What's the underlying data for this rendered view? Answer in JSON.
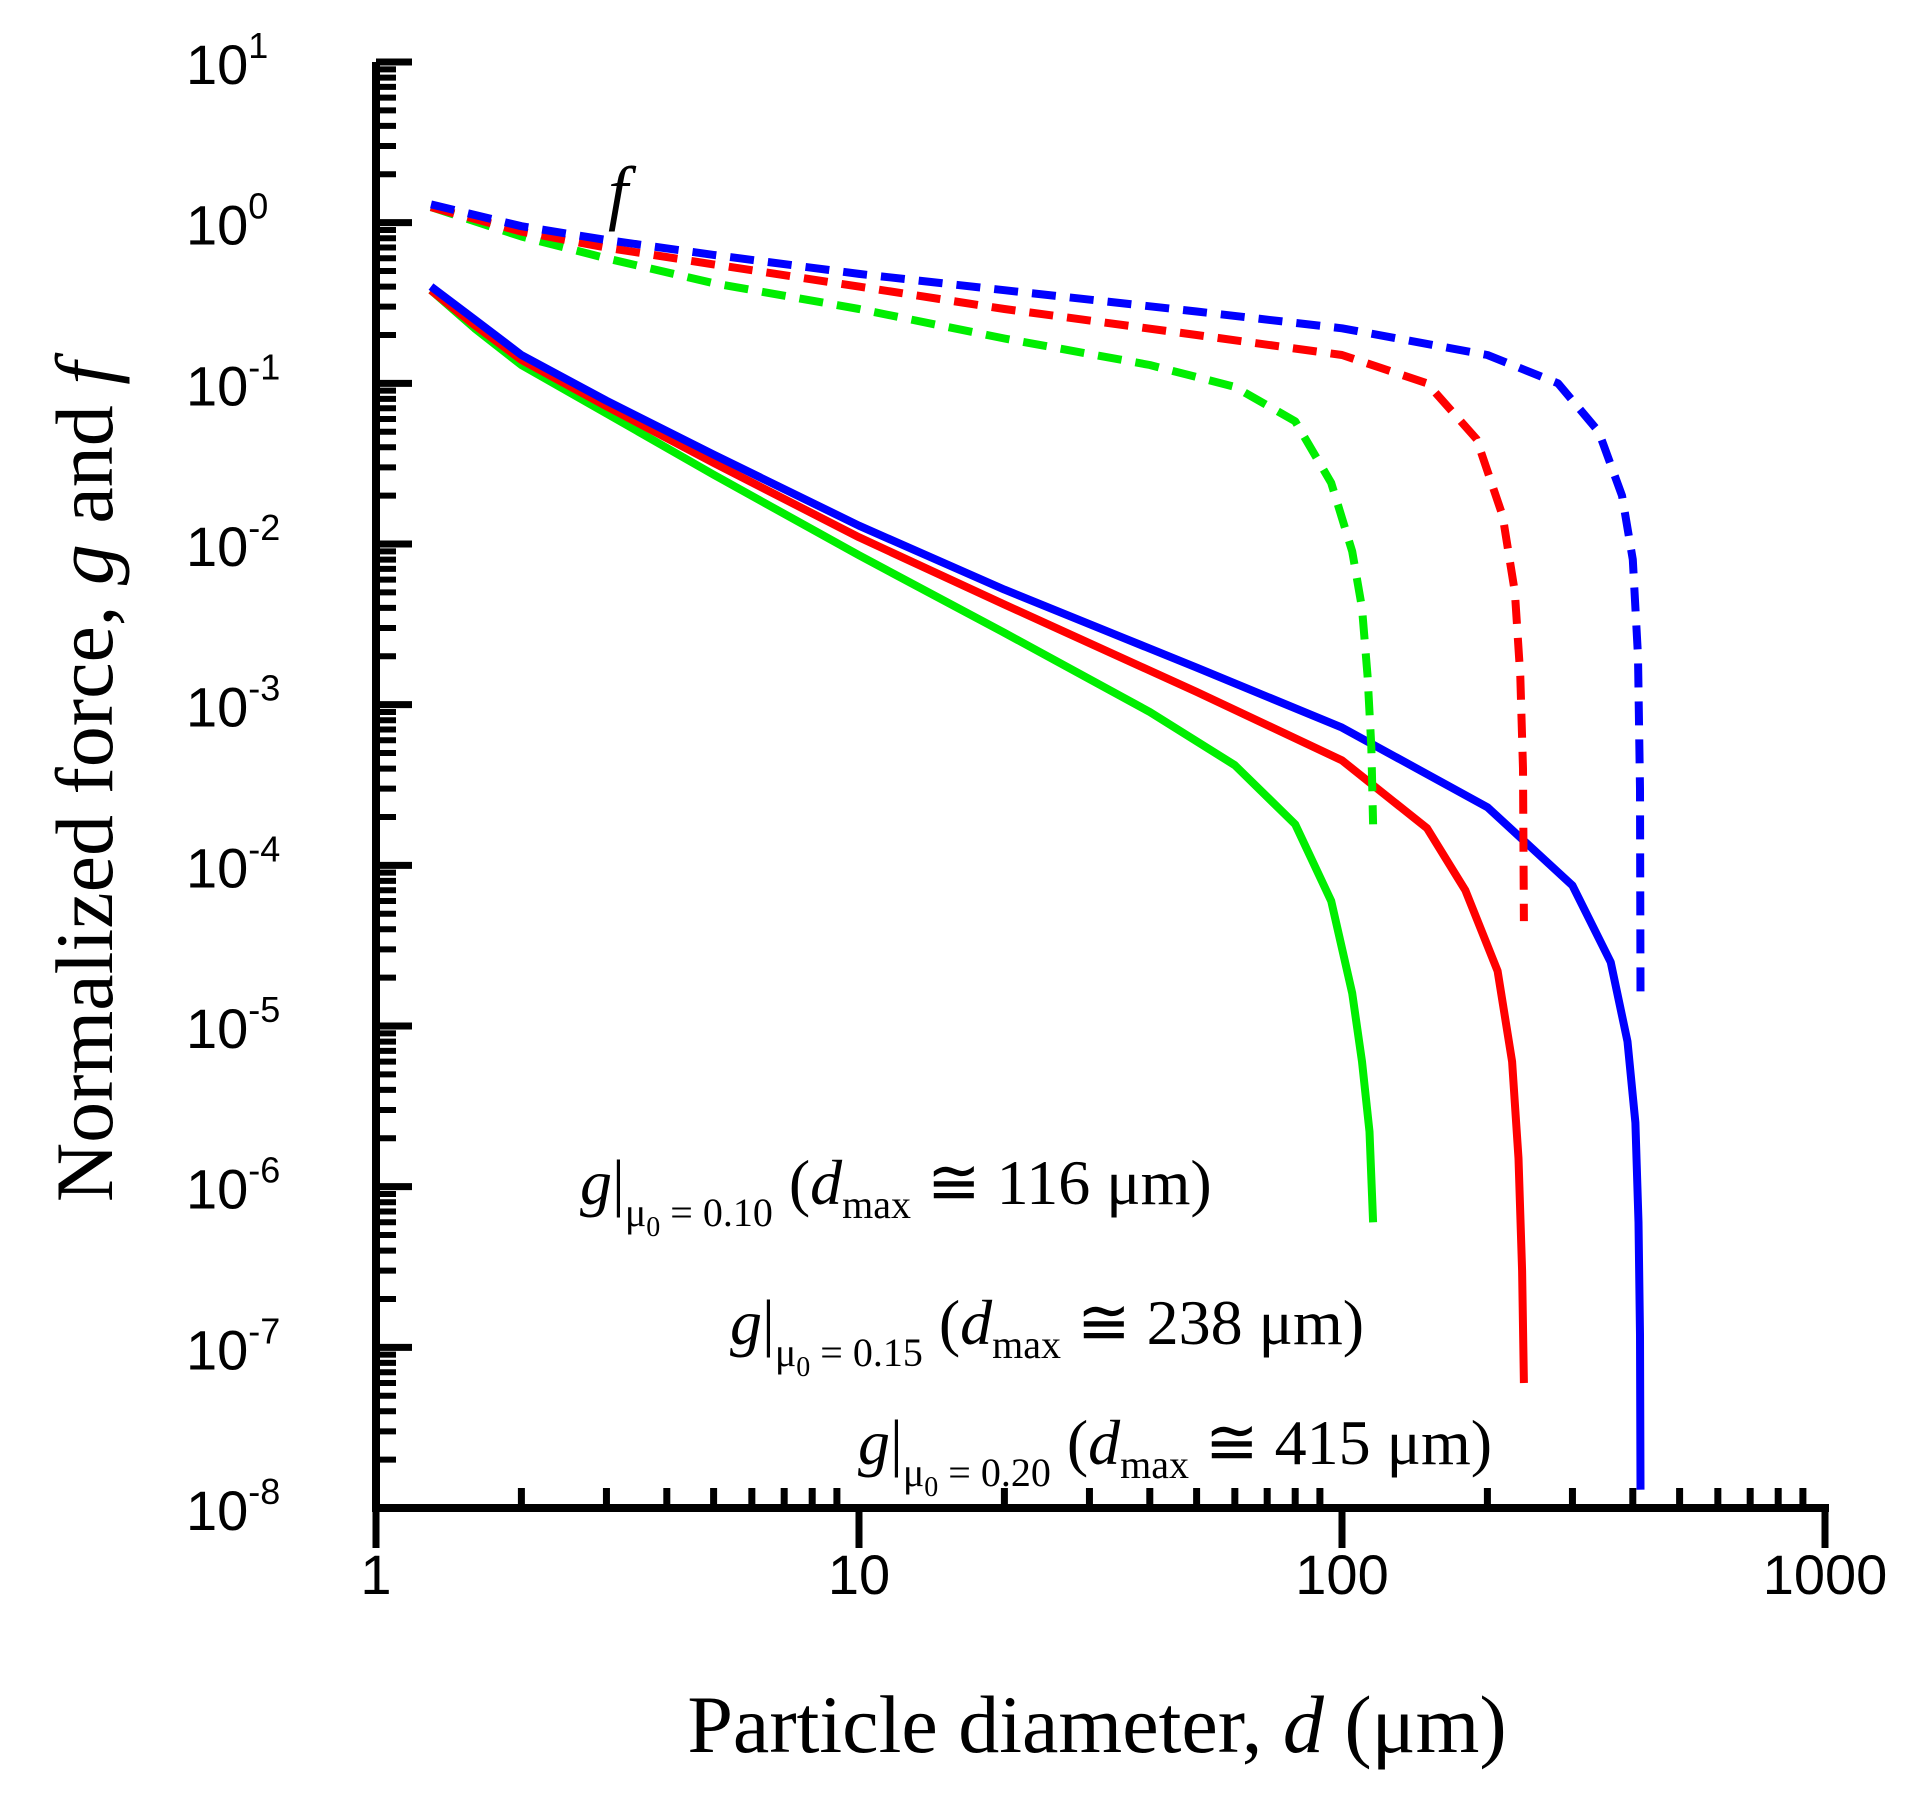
{
  "chart_data": {
    "type": "line",
    "title": "",
    "xscale": "log",
    "yscale": "log",
    "xlim": [
      1,
      1000
    ],
    "ylim": [
      1e-08,
      10
    ],
    "xlabel": {
      "text": "Particle diameter, ",
      "var": "d",
      "unit": " (μm)"
    },
    "ylabel": {
      "text": "Normalized force, ",
      "var1": "g",
      "mid": " and ",
      "var2": "f"
    },
    "x_ticks": [
      {
        "value": 1,
        "label": "1"
      },
      {
        "value": 10,
        "label": "10"
      },
      {
        "value": 100,
        "label": "100"
      },
      {
        "value": 1000,
        "label": "1000"
      }
    ],
    "y_ticks": [
      {
        "value": 10,
        "base": "10",
        "exp": "1"
      },
      {
        "value": 1,
        "base": "10",
        "exp": "0"
      },
      {
        "value": 0.1,
        "base": "10",
        "exp": "-1"
      },
      {
        "value": 0.01,
        "base": "10",
        "exp": "-2"
      },
      {
        "value": 0.001,
        "base": "10",
        "exp": "-3"
      },
      {
        "value": 0.0001,
        "base": "10",
        "exp": "-4"
      },
      {
        "value": 1e-05,
        "base": "10",
        "exp": "-5"
      },
      {
        "value": 1e-06,
        "base": "10",
        "exp": "-6"
      },
      {
        "value": 1e-07,
        "base": "10",
        "exp": "-7"
      },
      {
        "value": 1e-08,
        "base": "10",
        "exp": "-8"
      }
    ],
    "f_label": "f",
    "series": [
      {
        "name": "g (mu0 = 0.10)",
        "kind": "g",
        "style": "solid",
        "color": "#00ee00",
        "mu0": "0.10",
        "dmax": "116",
        "points": [
          [
            1.3,
            0.38
          ],
          [
            1.6,
            0.22
          ],
          [
            2,
            0.13
          ],
          [
            3,
            0.065
          ],
          [
            5,
            0.027
          ],
          [
            10,
            0.0085
          ],
          [
            20,
            0.0028
          ],
          [
            40,
            0.0009
          ],
          [
            60,
            0.00042
          ],
          [
            80,
            0.00018
          ],
          [
            95,
            6e-05
          ],
          [
            105,
            1.6e-05
          ],
          [
            110,
            6e-06
          ],
          [
            114,
            2.2e-06
          ],
          [
            116,
            6e-07
          ]
        ]
      },
      {
        "name": "g (mu0 = 0.15)",
        "kind": "g",
        "style": "solid",
        "color": "#ff0000",
        "mu0": "0.15",
        "dmax": "238",
        "points": [
          [
            1.3,
            0.38
          ],
          [
            1.6,
            0.23
          ],
          [
            2,
            0.14
          ],
          [
            3,
            0.072
          ],
          [
            5,
            0.032
          ],
          [
            10,
            0.011
          ],
          [
            20,
            0.0042
          ],
          [
            50,
            0.0012
          ],
          [
            100,
            0.00045
          ],
          [
            150,
            0.00017
          ],
          [
            180,
            7e-05
          ],
          [
            210,
            2.2e-05
          ],
          [
            225,
            6e-06
          ],
          [
            232,
            1.5e-06
          ],
          [
            236,
            3e-07
          ],
          [
            238,
            6e-08
          ]
        ]
      },
      {
        "name": "g (mu0 = 0.20)",
        "kind": "g",
        "style": "solid",
        "color": "#0000ff",
        "mu0": "0.20",
        "dmax": "415",
        "points": [
          [
            1.3,
            0.4
          ],
          [
            1.6,
            0.25
          ],
          [
            2,
            0.15
          ],
          [
            3,
            0.078
          ],
          [
            5,
            0.036
          ],
          [
            10,
            0.013
          ],
          [
            20,
            0.0052
          ],
          [
            50,
            0.0017
          ],
          [
            100,
            0.00072
          ],
          [
            200,
            0.00023
          ],
          [
            300,
            7.5e-05
          ],
          [
            360,
            2.5e-05
          ],
          [
            390,
            8e-06
          ],
          [
            405,
            2.5e-06
          ],
          [
            411,
            6e-07
          ],
          [
            414,
            1.2e-07
          ],
          [
            415,
            1.3e-08
          ]
        ]
      },
      {
        "name": "f (mu0 = 0.10)",
        "kind": "f",
        "style": "dashed",
        "color": "#00ee00",
        "points": [
          [
            1.3,
            1.25
          ],
          [
            2,
            0.82
          ],
          [
            3,
            0.6
          ],
          [
            5,
            0.42
          ],
          [
            10,
            0.29
          ],
          [
            20,
            0.19
          ],
          [
            40,
            0.13
          ],
          [
            60,
            0.095
          ],
          [
            80,
            0.058
          ],
          [
            95,
            0.024
          ],
          [
            105,
            0.009
          ],
          [
            110,
            0.004
          ],
          [
            113,
            0.0015
          ],
          [
            115,
            0.00055
          ],
          [
            116,
            0.00018
          ]
        ]
      },
      {
        "name": "f (mu0 = 0.15)",
        "kind": "f",
        "style": "dashed",
        "color": "#ff0000",
        "points": [
          [
            1.3,
            1.25
          ],
          [
            2,
            0.88
          ],
          [
            3,
            0.7
          ],
          [
            5,
            0.55
          ],
          [
            10,
            0.4
          ],
          [
            20,
            0.29
          ],
          [
            50,
            0.2
          ],
          [
            100,
            0.15
          ],
          [
            150,
            0.1
          ],
          [
            190,
            0.045
          ],
          [
            215,
            0.015
          ],
          [
            228,
            0.005
          ],
          [
            234,
            0.0015
          ],
          [
            237,
            0.0004
          ],
          [
            238,
            4.5e-05
          ]
        ]
      },
      {
        "name": "f (mu0 = 0.20)",
        "kind": "f",
        "style": "dashed",
        "color": "#0000ff",
        "points": [
          [
            1.3,
            1.3
          ],
          [
            2,
            0.95
          ],
          [
            3,
            0.78
          ],
          [
            5,
            0.63
          ],
          [
            10,
            0.48
          ],
          [
            20,
            0.38
          ],
          [
            50,
            0.28
          ],
          [
            100,
            0.22
          ],
          [
            200,
            0.15
          ],
          [
            280,
            0.1
          ],
          [
            340,
            0.05
          ],
          [
            380,
            0.02
          ],
          [
            400,
            0.008
          ],
          [
            410,
            0.002
          ],
          [
            414,
            0.0003
          ],
          [
            415,
            1.6e-05
          ]
        ]
      }
    ],
    "annotations": [
      {
        "var": "g",
        "sub": "μ",
        "subsub": "0",
        "eq": " = 0.10",
        "open": " (",
        "dvar": "d",
        "dsub": "max",
        "approx": " ≅ 116 μm)"
      },
      {
        "var": "g",
        "sub": "μ",
        "subsub": "0",
        "eq": " = 0.15",
        "open": " (",
        "dvar": "d",
        "dsub": "max",
        "approx": " ≅ 238 μm)"
      },
      {
        "var": "g",
        "sub": "μ",
        "subsub": "0",
        "eq": " = 0.20",
        "open": " (",
        "dvar": "d",
        "dsub": "max",
        "approx": " ≅ 415 μm)"
      }
    ]
  }
}
